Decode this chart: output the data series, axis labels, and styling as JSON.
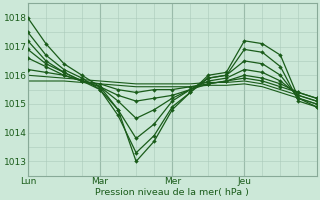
{
  "xlabel": "Pression niveau de la mer( hPa )",
  "bg_color": "#cce8d8",
  "grid_color_minor": "#aacaba",
  "grid_color_major": "#88aa98",
  "line_color": "#1a5c1a",
  "ylim": [
    1012.7,
    1018.3
  ],
  "xlim": [
    0,
    96
  ],
  "xtick_positions": [
    0,
    24,
    48,
    72
  ],
  "xtick_labels": [
    "Lun",
    "Mar",
    "Mer",
    "Jeu"
  ],
  "ytick_positions": [
    1013,
    1014,
    1015,
    1016,
    1017,
    1018
  ],
  "x_pts": [
    0,
    6,
    12,
    18,
    24,
    30,
    36,
    42,
    48,
    54,
    60,
    66,
    72,
    78,
    84,
    90,
    96
  ],
  "lines": [
    [
      1018.0,
      1017.1,
      1016.4,
      1016.0,
      1015.6,
      1014.8,
      1013.0,
      1013.7,
      1014.8,
      1015.4,
      1016.0,
      1016.1,
      1017.2,
      1017.1,
      1016.7,
      1015.2,
      1014.9
    ],
    [
      1017.5,
      1016.7,
      1016.2,
      1015.9,
      1015.5,
      1014.6,
      1013.3,
      1013.9,
      1014.9,
      1015.4,
      1015.9,
      1016.0,
      1016.9,
      1016.8,
      1016.3,
      1015.1,
      1014.9
    ],
    [
      1017.2,
      1016.5,
      1016.1,
      1015.8,
      1015.5,
      1014.8,
      1013.8,
      1014.3,
      1015.1,
      1015.5,
      1015.9,
      1016.0,
      1016.5,
      1016.4,
      1016.0,
      1015.2,
      1015.0
    ],
    [
      1016.9,
      1016.4,
      1016.1,
      1015.8,
      1015.6,
      1015.1,
      1014.5,
      1014.8,
      1015.2,
      1015.5,
      1015.8,
      1015.9,
      1016.2,
      1016.1,
      1015.8,
      1015.3,
      1015.1
    ],
    [
      1016.6,
      1016.3,
      1016.0,
      1015.8,
      1015.6,
      1015.3,
      1015.1,
      1015.2,
      1015.3,
      1015.5,
      1015.7,
      1015.8,
      1016.0,
      1015.9,
      1015.7,
      1015.4,
      1015.2
    ],
    [
      1016.2,
      1016.1,
      1016.0,
      1015.8,
      1015.7,
      1015.5,
      1015.4,
      1015.5,
      1015.5,
      1015.6,
      1015.7,
      1015.8,
      1015.9,
      1015.8,
      1015.6,
      1015.4,
      1015.2
    ],
    [
      1016.0,
      1015.95,
      1015.9,
      1015.85,
      1015.8,
      1015.75,
      1015.7,
      1015.7,
      1015.7,
      1015.7,
      1015.75,
      1015.75,
      1015.8,
      1015.7,
      1015.5,
      1015.3,
      1015.1
    ],
    [
      1015.8,
      1015.8,
      1015.8,
      1015.75,
      1015.7,
      1015.65,
      1015.6,
      1015.6,
      1015.6,
      1015.6,
      1015.65,
      1015.65,
      1015.7,
      1015.6,
      1015.4,
      1015.2,
      1015.0
    ]
  ],
  "marker_lines": [
    0,
    1,
    2,
    3,
    4,
    5
  ]
}
